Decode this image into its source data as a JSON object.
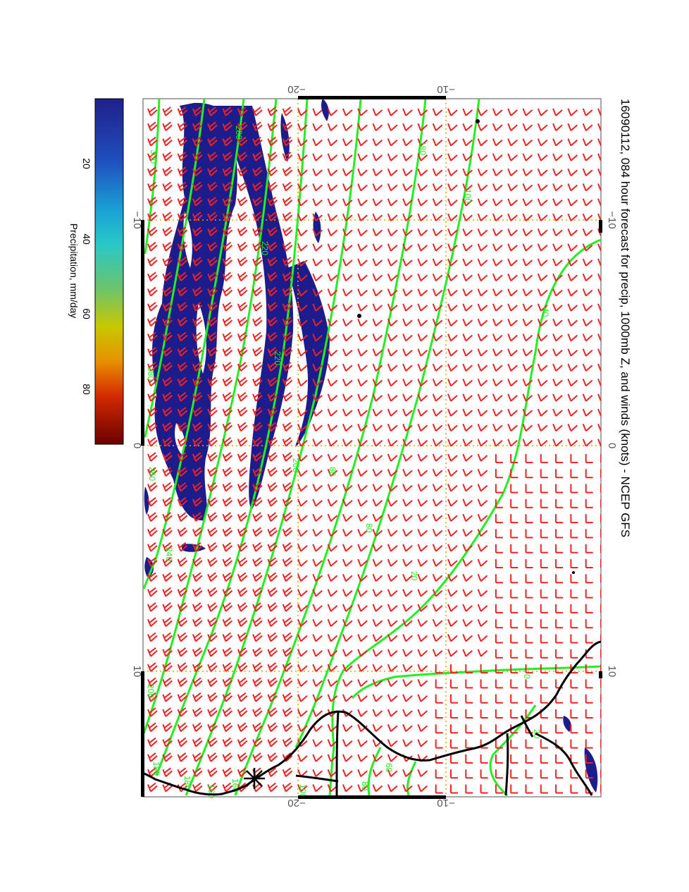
{
  "title": "16090112, 084 hour forecast for precip, 1000mb Z, and winds (knots) - NCEP GFS",
  "top_axis": {
    "ticks": [
      {
        "label": "−20"
      },
      {
        "label": "−10"
      }
    ]
  },
  "bottom_axis": {
    "ticks": [
      {
        "label": "−20"
      },
      {
        "label": "−10"
      }
    ]
  },
  "left_axis": {
    "ticks": [
      {
        "label": "−10"
      },
      {
        "label": "0"
      },
      {
        "label": "10"
      }
    ]
  },
  "right_axis": {
    "ticks": [
      {
        "label": "−10"
      },
      {
        "label": "0"
      },
      {
        "label": "10"
      }
    ]
  },
  "colorbar": {
    "label": "Precipitation, mm/day",
    "ticks": [
      {
        "label": "20"
      },
      {
        "label": "40"
      },
      {
        "label": "60"
      },
      {
        "label": "80"
      }
    ],
    "colors": [
      "#ffffff",
      "#1a1a8c",
      "#1f4fbf",
      "#1aa0d4",
      "#28c8c8",
      "#6cc46c",
      "#c8c800",
      "#e89000",
      "#d42a00",
      "#6a0000"
    ]
  },
  "contour_labels": [
    "300",
    "280",
    "260",
    "240",
    "220",
    "200",
    "180",
    "160",
    "140",
    "120",
    "100",
    "80",
    "60",
    "40",
    "20",
    "0"
  ],
  "colors": {
    "precip": "#1c1c8c",
    "contour": "#22ee22",
    "wind": "#ee2222",
    "coast": "#000000",
    "grid": "#e6a400"
  }
}
